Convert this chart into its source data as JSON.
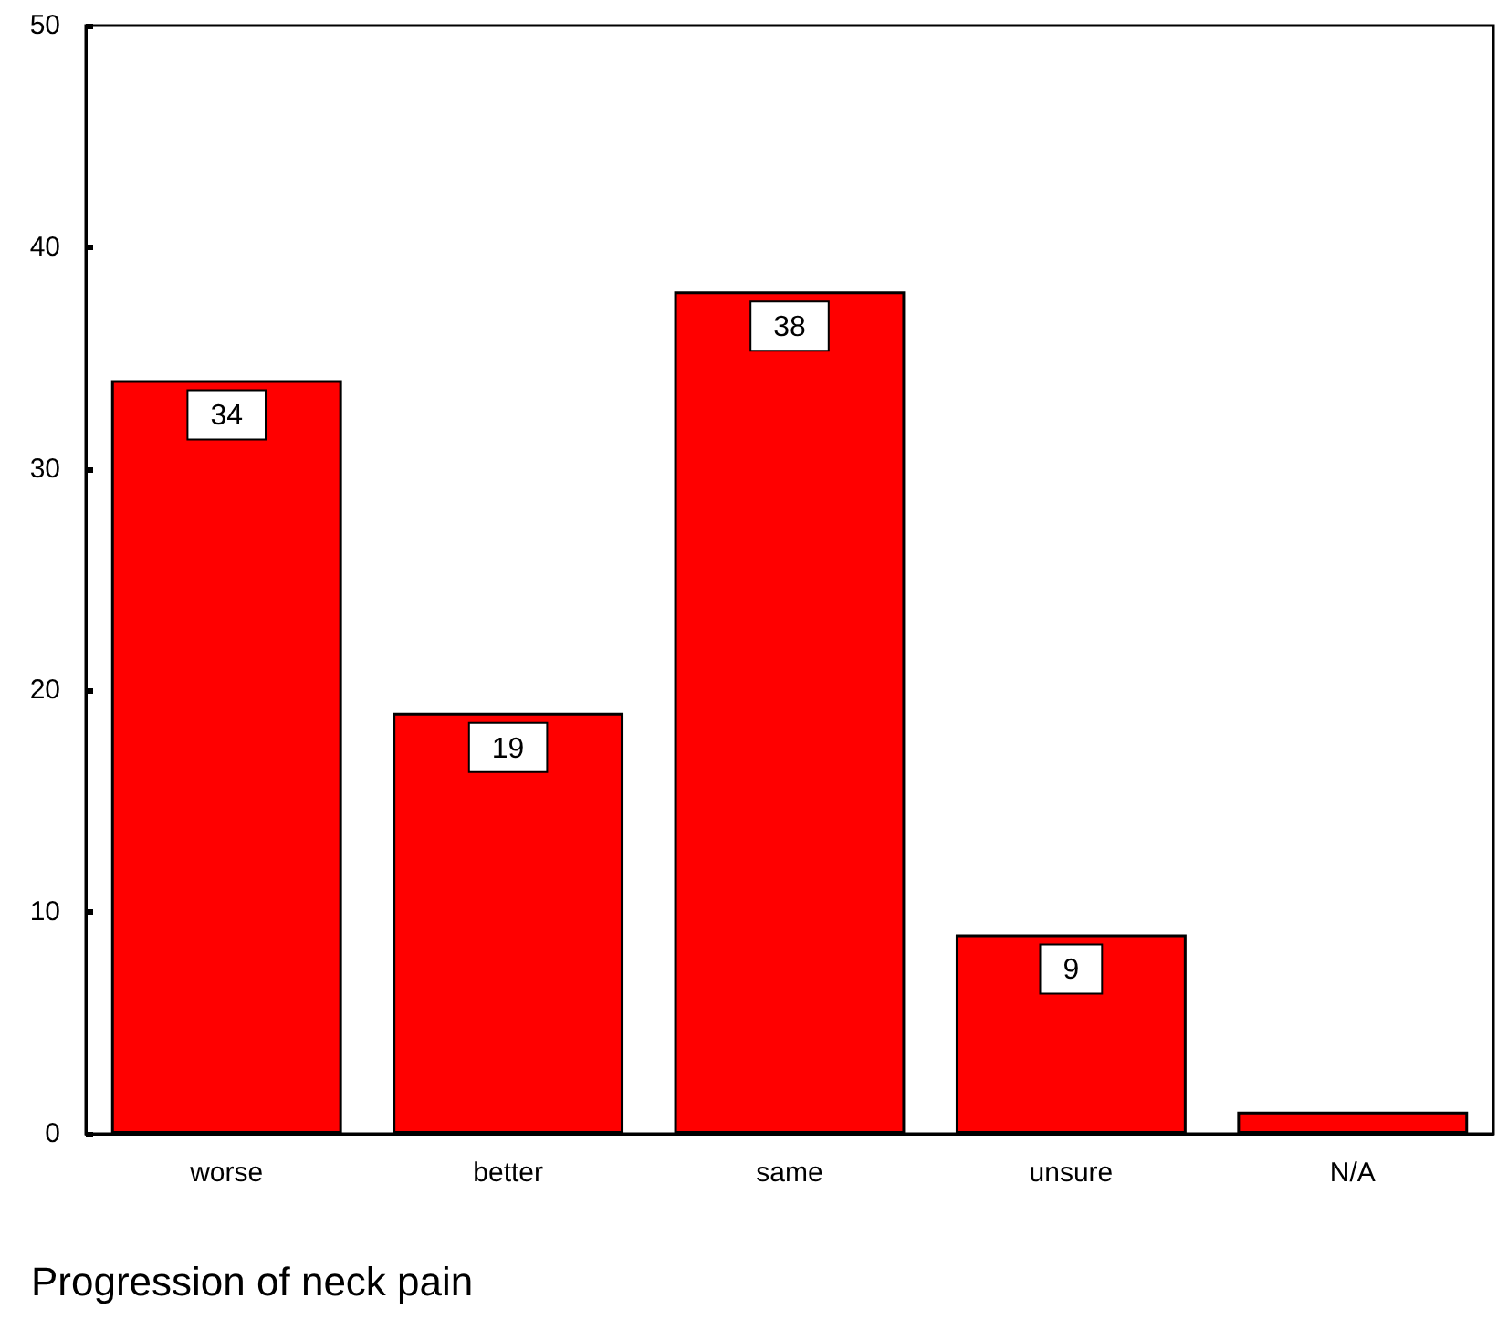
{
  "chart_data": {
    "type": "bar",
    "xlabel": "Progression of neck pain",
    "categories": [
      "worse",
      "better",
      "same",
      "unsure",
      "N/A"
    ],
    "values": [
      34,
      19,
      38,
      9,
      1
    ],
    "value_labels": [
      "34",
      "19",
      "38",
      "9",
      null
    ],
    "color": "#ff0000",
    "ylim": [
      0,
      50
    ],
    "yticks": [
      0,
      10,
      20,
      30,
      40,
      50
    ],
    "grid": false
  }
}
